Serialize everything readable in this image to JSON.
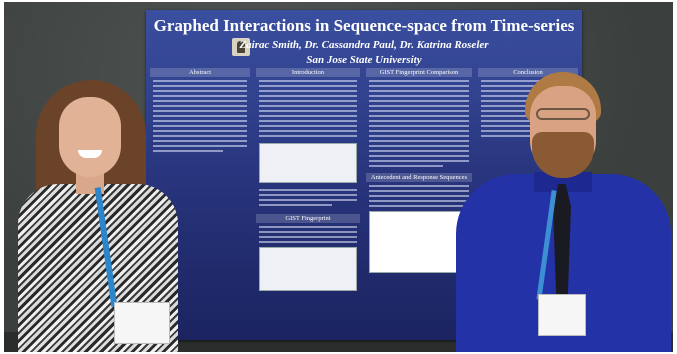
{
  "poster": {
    "title": "Graphed Interactions in Sequence-space from Time-series",
    "authors": "Zairac Smith, Dr. Cassandra Paul, Dr. Katrina Roseler",
    "university": "San Jose State University",
    "sections": {
      "abstract": "Abstract",
      "introduction": "Introduction",
      "gist_comparison": "GIST Fingerprint Comparison",
      "conclusion": "Conclusion",
      "gist_fingerprint": "GIST Fingerprint",
      "antecedent": "Antecedent and Response Sequences"
    }
  },
  "colors": {
    "poster_blue": "#27337a",
    "wall": "#3b403f",
    "shirt_blue": "#2432a8"
  }
}
